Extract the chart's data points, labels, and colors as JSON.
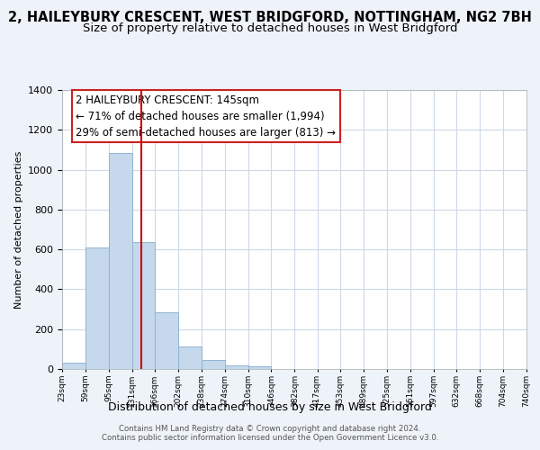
{
  "title": "2, HAILEYBURY CRESCENT, WEST BRIDGFORD, NOTTINGHAM, NG2 7BH",
  "subtitle": "Size of property relative to detached houses in West Bridgford",
  "xlabel": "Distribution of detached houses by size in West Bridgford",
  "ylabel": "Number of detached properties",
  "bar_color": "#c5d8ec",
  "bar_edge_color": "#92b4d0",
  "bin_edges": [
    23,
    59,
    95,
    131,
    166,
    202,
    238,
    274,
    310,
    346,
    382,
    417,
    453,
    489,
    525,
    561,
    597,
    632,
    668,
    704,
    740
  ],
  "bin_labels": [
    "23sqm",
    "59sqm",
    "95sqm",
    "131sqm",
    "166sqm",
    "202sqm",
    "238sqm",
    "274sqm",
    "310sqm",
    "346sqm",
    "382sqm",
    "417sqm",
    "453sqm",
    "489sqm",
    "525sqm",
    "561sqm",
    "597sqm",
    "632sqm",
    "668sqm",
    "704sqm",
    "740sqm"
  ],
  "bar_heights": [
    30,
    610,
    1085,
    635,
    285,
    115,
    45,
    20,
    15,
    0,
    0,
    0,
    0,
    0,
    0,
    0,
    0,
    0,
    0,
    0
  ],
  "property_line_x": 145,
  "ylim": [
    0,
    1400
  ],
  "yticks": [
    0,
    200,
    400,
    600,
    800,
    1000,
    1200,
    1400
  ],
  "annotation_line1": "2 HAILEYBURY CRESCENT: 145sqm",
  "annotation_line2": "← 71% of detached houses are smaller (1,994)",
  "annotation_line3": "29% of semi-detached houses are larger (813) →",
  "footer_line1": "Contains HM Land Registry data © Crown copyright and database right 2024.",
  "footer_line2": "Contains public sector information licensed under the Open Government Licence v3.0.",
  "background_color": "#eef2f9",
  "plot_bg_color": "#ffffff",
  "grid_color": "#ccd9e8",
  "title_fontsize": 10.5,
  "subtitle_fontsize": 9.5,
  "red_line_color": "#cc0000"
}
